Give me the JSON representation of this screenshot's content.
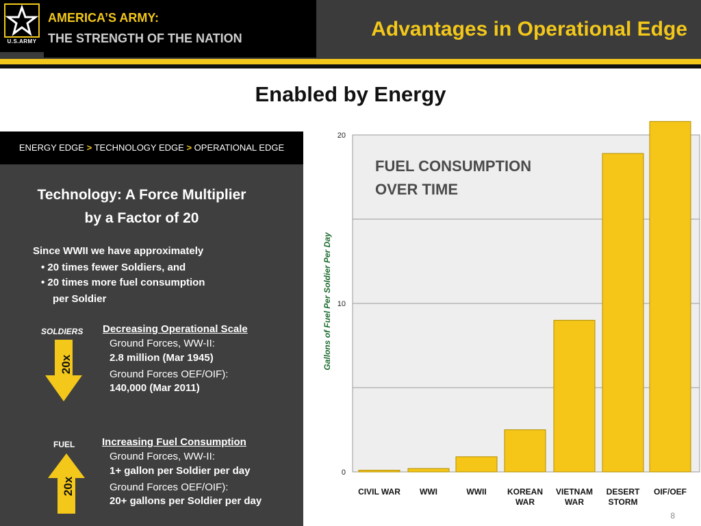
{
  "header": {
    "logo_text": "U.S.ARMY",
    "brand_title": "AMERICA’S ARMY:",
    "brand_subtitle": "THE STRENGTH OF THE NATION",
    "slide_title": "Advantages in Operational Edge"
  },
  "subtitle": "Enabled by Energy",
  "panel": {
    "breadcrumb": [
      "ENERGY  EDGE",
      "TECHNOLOGY EDGE",
      "OPERATIONAL EDGE"
    ],
    "breadcrumb_separator": ">",
    "title_line1": "Technology: A Force Multiplier",
    "title_line2": "by a Factor of 20",
    "intro": "Since WWII we have approximately",
    "bullet1": "• 20 times fewer Soldiers, and",
    "bullet2": "• 20 times more fuel consumption",
    "bullet2_cont": "per Soldier",
    "soldiers_label": "SOLDIERS",
    "soldiers_arrow": "20x",
    "soldiers_heading": "Decreasing Operational Scale",
    "soldiers_line1": "Ground Forces, WW-II:",
    "soldiers_line2": "2.8 million (Mar 1945)",
    "soldiers_line3": "Ground Forces OEF/OIF):",
    "soldiers_line4": "140,000 (Mar 2011)",
    "fuel_label": "FUEL",
    "fuel_arrow": "20x",
    "fuel_heading": "Increasing Fuel Consumption",
    "fuel_line1": "Ground Forces, WW-II:",
    "fuel_line2": "1+ gallon per Soldier per day",
    "fuel_line3": "Ground Forces OEF/OIF):",
    "fuel_line4": "20+ gallons per Soldier per day"
  },
  "chart_title_line1": "FUEL CONSUMPTION",
  "chart_title_line2": "OVER TIME",
  "page_number": "8",
  "colors": {
    "accent": "#f3c81a",
    "bar": "#f5c518",
    "panel": "#3f3f3f"
  },
  "chart_data": {
    "type": "bar",
    "categories": [
      "CIVIL WAR",
      "WWI",
      "WWII",
      "KOREAN WAR",
      "VIETNAM WAR",
      "DESERT STORM",
      "OIF/OEF"
    ],
    "category_lines": [
      [
        "CIVIL WAR"
      ],
      [
        "WWI"
      ],
      [
        "WWII"
      ],
      [
        "KOREAN",
        "WAR"
      ],
      [
        "VIETNAM",
        "WAR"
      ],
      [
        "DESERT",
        "STORM"
      ],
      [
        "OIF/OEF"
      ]
    ],
    "values": [
      0.1,
      0.2,
      0.9,
      2.5,
      9.0,
      18.9,
      20.8
    ],
    "ylabel": "Gallons of Fuel Per Soldier Per Day",
    "ylim": [
      0,
      20
    ],
    "yticks": [
      0,
      10,
      20
    ],
    "grid": true
  }
}
